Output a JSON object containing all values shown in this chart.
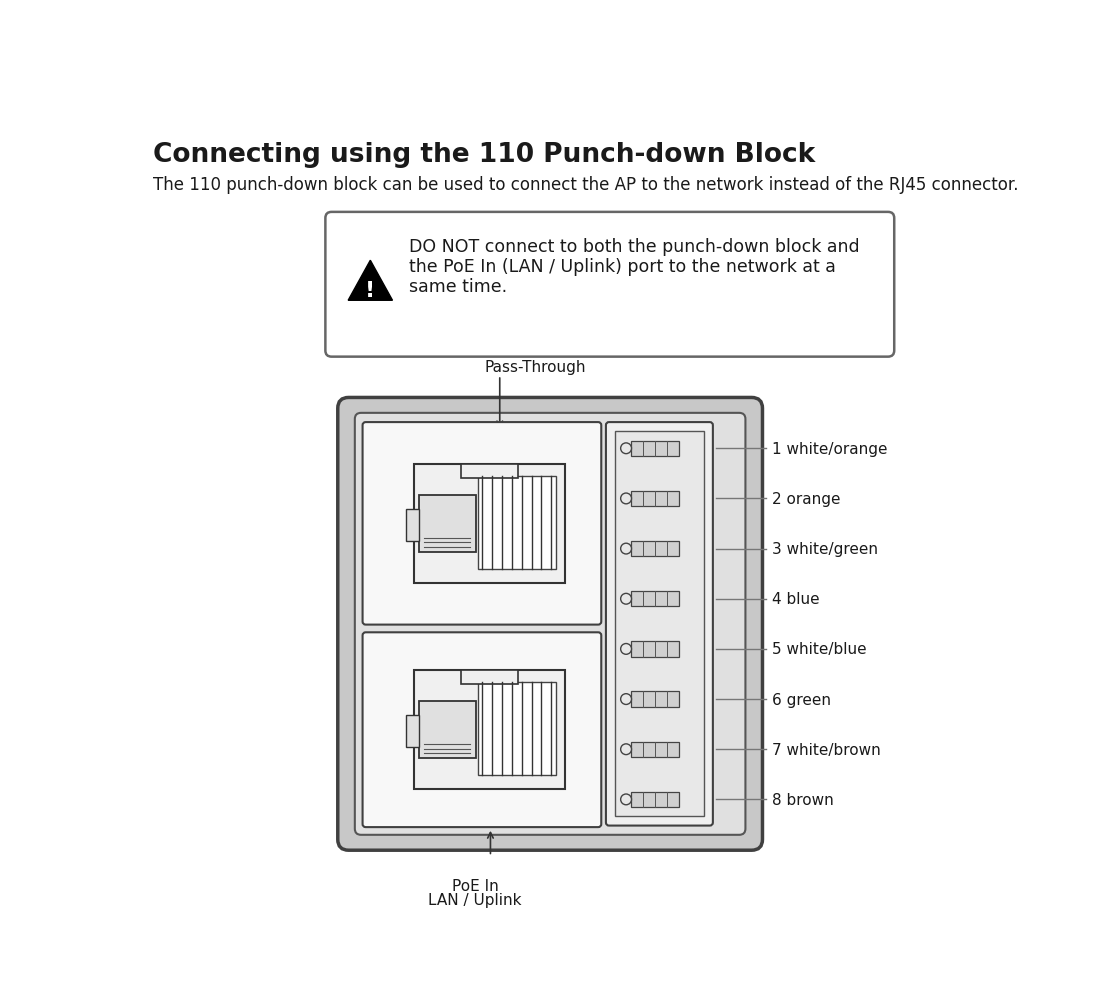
{
  "title": "Connecting using the 110 Punch-down Block",
  "subtitle": "The 110 punch-down block can be used to connect the AP to the network instead of the RJ45 connector.",
  "warning_text_line1": "DO NOT connect to both the punch-down block and",
  "warning_text_line2": "the PoE In (LAN / Uplink) port to the network at a",
  "warning_text_line3": "same time.",
  "pass_through_label": "Pass-Through",
  "poe_label_1": "PoE In",
  "poe_label_2": "LAN / Uplink",
  "wire_labels": [
    "1 white/orange",
    "2 orange",
    "3 white/green",
    "4 blue",
    "5 white/blue",
    "6 green",
    "7 white/brown",
    "8 brown"
  ],
  "bg_color": "#ffffff",
  "text_color": "#1a1a1a",
  "line_color": "#333333",
  "box_color": "#555555",
  "device_fill": "#d8d8d8",
  "inner_fill": "#efefef",
  "port_fill": "#ffffff"
}
